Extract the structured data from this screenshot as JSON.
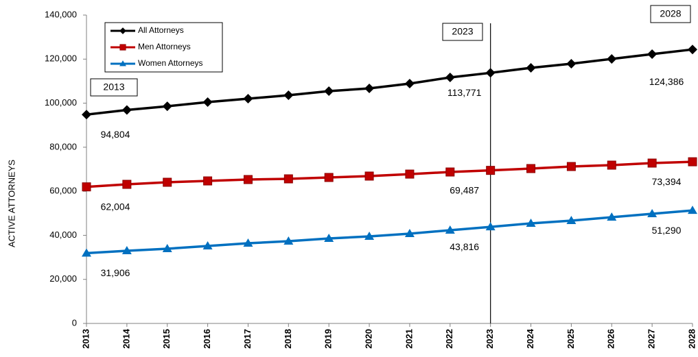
{
  "chart_data": {
    "type": "line",
    "y_label": "ACTIVE ATTORNEYS",
    "x": [
      2013,
      2014,
      2015,
      2016,
      2017,
      2018,
      2019,
      2020,
      2021,
      2022,
      2023,
      2024,
      2025,
      2026,
      2027,
      2028
    ],
    "xlim": [
      2013,
      2028
    ],
    "xticks": [
      2013,
      2014,
      2015,
      2016,
      2017,
      2018,
      2019,
      2020,
      2021,
      2022,
      2023,
      2024,
      2025,
      2026,
      2027,
      2028
    ],
    "ylim": [
      0,
      140000
    ],
    "yticks": [
      0,
      {
        "value": 20000,
        "label": "20,000"
      },
      {
        "value": 40000,
        "label": "40,000"
      },
      {
        "value": 60000,
        "label": "60,000"
      },
      {
        "value": 80000,
        "label": "80,000"
      },
      {
        "value": 100000,
        "label": "100,000"
      },
      {
        "value": 120000,
        "label": "120,000"
      },
      {
        "value": 140000,
        "label": "140,000"
      }
    ],
    "grid": false,
    "legend": "top-left",
    "series": [
      {
        "name": "All Attorneys",
        "color": "#000000",
        "marker": "diamond",
        "values": [
          94804,
          96900,
          98600,
          100490,
          102050,
          103600,
          105470,
          106700,
          108900,
          111700,
          113771,
          116040,
          117900,
          120090,
          122270,
          124386
        ],
        "value_labels": [
          "94,804",
          null,
          null,
          null,
          null,
          null,
          null,
          null,
          null,
          null,
          "113,771",
          null,
          null,
          null,
          null,
          "124,386"
        ]
      },
      {
        "name": "Men Attorneys",
        "color": "#c00000",
        "marker": "square",
        "values": [
          62004,
          63150,
          64090,
          64700,
          65330,
          65640,
          66270,
          66900,
          67800,
          68750,
          69487,
          70310,
          71240,
          71870,
          72800,
          73394
        ],
        "value_labels": [
          "62,004",
          null,
          null,
          null,
          null,
          null,
          null,
          null,
          null,
          null,
          "69,487",
          null,
          null,
          null,
          null,
          "73,394"
        ]
      },
      {
        "name": "Women Attorneys",
        "color": "#0070c0",
        "marker": "triangle",
        "values": [
          31906,
          32980,
          33910,
          35150,
          36400,
          37330,
          38580,
          39510,
          40760,
          42310,
          43816,
          45420,
          46670,
          48220,
          49780,
          51290
        ],
        "value_labels": [
          "31,906",
          null,
          null,
          null,
          null,
          null,
          null,
          null,
          null,
          null,
          "43,816",
          null,
          null,
          null,
          null,
          "51,290"
        ]
      }
    ],
    "vline": 2023,
    "annotations": [
      "2013",
      "2023",
      "2028"
    ]
  }
}
